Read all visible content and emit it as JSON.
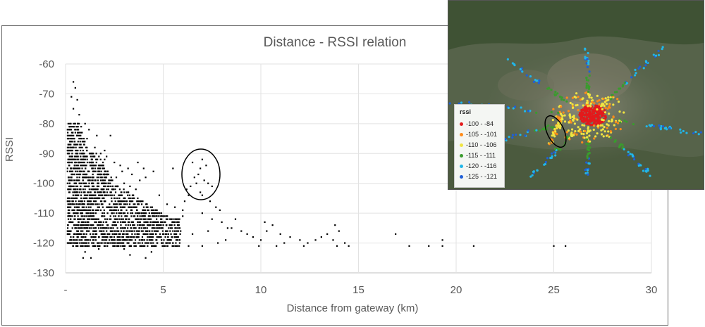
{
  "chart_data": {
    "type": "scatter",
    "title": "Distance - RSSI relation",
    "xlabel": "Distance from gateway (km)",
    "ylabel": "RSSI",
    "xlim": [
      0,
      30
    ],
    "ylim": [
      -130,
      -60
    ],
    "x_ticks": [
      "-",
      "5",
      "10",
      "15",
      "20",
      "25",
      "30"
    ],
    "y_ticks": [
      "-60",
      "-70",
      "-80",
      "-90",
      "-100",
      "-110",
      "-120",
      "-130"
    ],
    "grid": true,
    "series": [
      {
        "points": [
          [
            0.4,
            -66
          ],
          [
            0.5,
            -68
          ],
          [
            0.3,
            -71
          ],
          [
            0.6,
            -72
          ],
          [
            0.4,
            -75
          ],
          [
            0.7,
            -77
          ],
          [
            0.5,
            -80
          ],
          [
            0.8,
            -81
          ],
          [
            1.0,
            -80
          ],
          [
            1.2,
            -82
          ],
          [
            1.1,
            -85
          ],
          [
            1.5,
            -88
          ],
          [
            1.8,
            -90
          ],
          [
            2.0,
            -92
          ],
          [
            1.6,
            -84
          ],
          [
            0.9,
            -86
          ],
          [
            2.2,
            -97
          ],
          [
            2.4,
            -99
          ],
          [
            2.6,
            -98
          ],
          [
            3.0,
            -100
          ],
          [
            3.3,
            -101
          ],
          [
            3.6,
            -102
          ],
          [
            2.1,
            -104
          ],
          [
            2.7,
            -106
          ],
          [
            3.0,
            -105
          ],
          [
            3.5,
            -108
          ],
          [
            4.0,
            -110
          ],
          [
            4.4,
            -109
          ],
          [
            4.8,
            -104
          ],
          [
            5.2,
            -107
          ],
          [
            5.6,
            -108
          ],
          [
            6.0,
            -111
          ],
          [
            4.0,
            -95
          ],
          [
            4.5,
            -96
          ],
          [
            3.7,
            -93
          ],
          [
            2.9,
            -96
          ],
          [
            2.3,
            -84
          ],
          [
            5.5,
            -95
          ],
          [
            6.3,
            -104
          ],
          [
            6.7,
            -100
          ],
          [
            6.5,
            -93
          ],
          [
            6.9,
            -95
          ],
          [
            7.0,
            -92
          ],
          [
            7.2,
            -94
          ],
          [
            6.8,
            -97
          ],
          [
            6.6,
            -98
          ],
          [
            7.1,
            -99
          ],
          [
            6.4,
            -101
          ],
          [
            7.3,
            -100
          ],
          [
            6.2,
            -102
          ],
          [
            6.9,
            -103
          ],
          [
            7.5,
            -101
          ],
          [
            7.0,
            -104
          ],
          [
            7.4,
            -106
          ],
          [
            7.7,
            -108
          ],
          [
            7.9,
            -109
          ],
          [
            6.1,
            -106
          ],
          [
            6.0,
            -109
          ],
          [
            5.8,
            -113
          ],
          [
            7.0,
            -110
          ],
          [
            7.5,
            -112
          ],
          [
            8.0,
            -113
          ],
          [
            8.5,
            -115
          ],
          [
            9.0,
            -116
          ],
          [
            9.3,
            -117
          ],
          [
            9.6,
            -118
          ],
          [
            10.0,
            -119
          ],
          [
            10.3,
            -116
          ],
          [
            10.6,
            -114
          ],
          [
            11.0,
            -117
          ],
          [
            11.2,
            -120
          ],
          [
            11.5,
            -118
          ],
          [
            12.0,
            -119
          ],
          [
            12.4,
            -120
          ],
          [
            12.8,
            -119
          ],
          [
            13.1,
            -118
          ],
          [
            13.4,
            -117
          ],
          [
            13.7,
            -119
          ],
          [
            13.9,
            -121
          ],
          [
            14.0,
            -116
          ],
          [
            14.3,
            -120
          ],
          [
            14.5,
            -121
          ],
          [
            10.2,
            -113
          ],
          [
            8.7,
            -112
          ],
          [
            9.9,
            -121
          ],
          [
            10.8,
            -121
          ],
          [
            12.2,
            -121
          ],
          [
            13.8,
            -114
          ],
          [
            5.0,
            -121
          ],
          [
            5.5,
            -120
          ],
          [
            4.2,
            -121
          ],
          [
            3.6,
            -121
          ],
          [
            3.0,
            -121
          ],
          [
            2.5,
            -121
          ],
          [
            2.0,
            -121
          ],
          [
            1.5,
            -121
          ],
          [
            1.0,
            -121
          ],
          [
            0.6,
            -121
          ],
          [
            1.2,
            -116
          ],
          [
            1.8,
            -114
          ],
          [
            2.4,
            -116
          ],
          [
            3.2,
            -116
          ],
          [
            4.6,
            -116
          ],
          [
            5.2,
            -116
          ],
          [
            0.9,
            -125
          ],
          [
            1.3,
            -125
          ],
          [
            3.3,
            -124
          ],
          [
            4.1,
            -125
          ],
          [
            1.0,
            -123
          ],
          [
            1.7,
            -122
          ],
          [
            3.0,
            -122
          ],
          [
            4.4,
            -123
          ],
          [
            6.3,
            -121
          ],
          [
            7.0,
            -121
          ],
          [
            7.8,
            -120
          ],
          [
            8.2,
            -119
          ],
          [
            5.7,
            -118
          ],
          [
            6.5,
            -117
          ],
          [
            7.3,
            -116
          ],
          [
            8.3,
            -115
          ],
          [
            16.9,
            -117
          ],
          [
            17.6,
            -121
          ],
          [
            18.6,
            -121
          ],
          [
            19.3,
            -119
          ],
          [
            19.3,
            -121
          ],
          [
            20.9,
            -121
          ],
          [
            25.0,
            -121
          ],
          [
            25.6,
            -121
          ],
          [
            2.0,
            -89
          ],
          [
            2.1,
            -91
          ],
          [
            2.5,
            -93
          ],
          [
            2.8,
            -94
          ],
          [
            3.2,
            -95
          ],
          [
            3.4,
            -97
          ],
          [
            3.8,
            -99
          ],
          [
            4.1,
            -98
          ]
        ]
      }
    ],
    "annotations": [
      "ellipse around cluster near 7 km, RSSI -91 to -104"
    ]
  },
  "inset": {
    "legend_title": "rssi",
    "legend_items": [
      {
        "label": "-100 - -84",
        "color": "#e31a1c"
      },
      {
        "label": "-105 - -101",
        "color": "#ff8c1a"
      },
      {
        "label": "-110 - -106",
        "color": "#f0e442"
      },
      {
        "label": "-115 - -111",
        "color": "#3a9b2e"
      },
      {
        "label": "-120 - -116",
        "color": "#21b6e8"
      },
      {
        "label": "-125 - -121",
        "color": "#1f5fd6"
      }
    ]
  }
}
